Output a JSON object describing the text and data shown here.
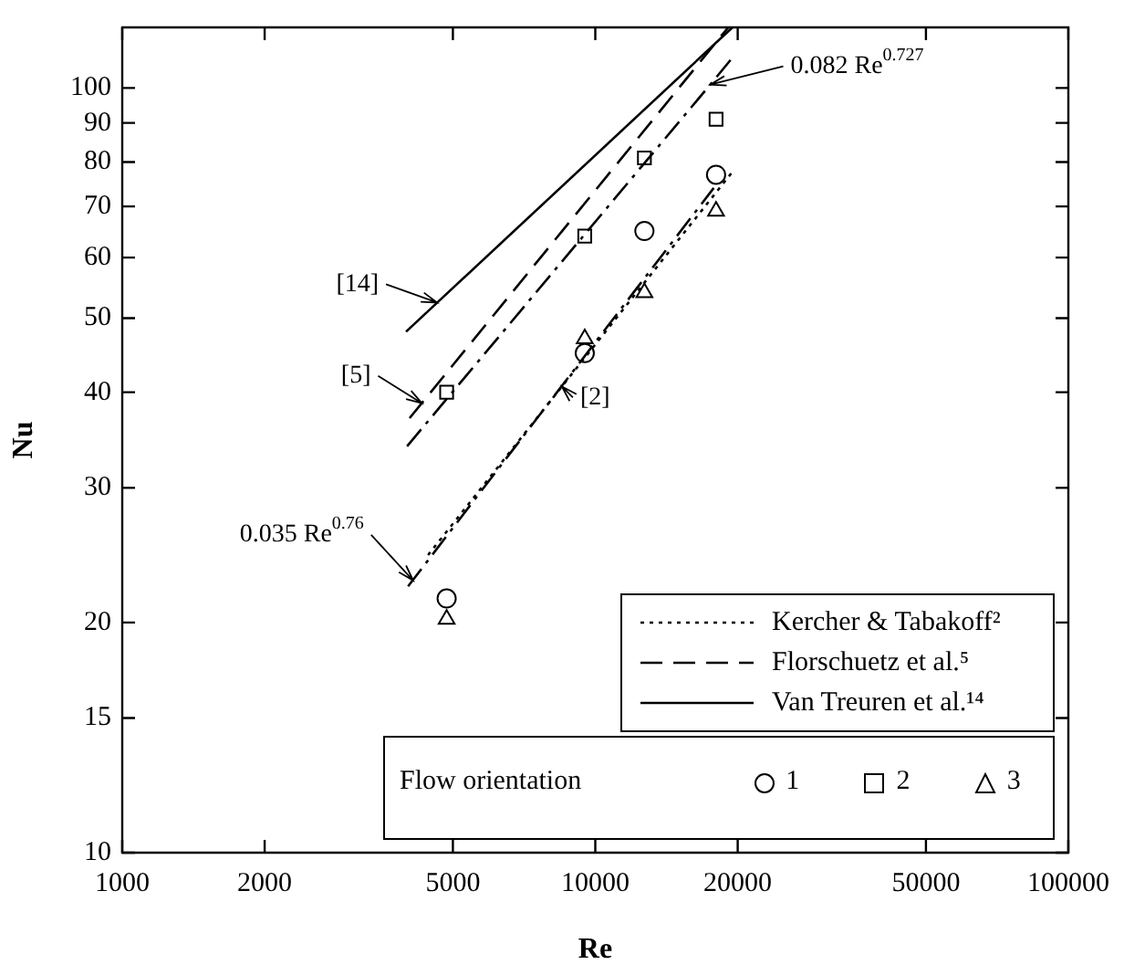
{
  "chart_data": {
    "type": "scatter",
    "xlabel": "Re",
    "ylabel": "Nu",
    "log": "xy",
    "xlim": [
      1000,
      100000
    ],
    "xticks": [
      1000,
      2000,
      5000,
      10000,
      20000,
      50000,
      100000
    ],
    "ylim": [
      10,
      120
    ],
    "yticks": [
      10,
      15,
      20,
      30,
      40,
      50,
      60,
      70,
      80,
      90,
      100
    ],
    "grid": false,
    "legend": "bottom right",
    "legend_title": "Flow orientation",
    "series": [
      {
        "name": "Kercher & Tabakoff²",
        "type": "line",
        "color": "#000000",
        "line_style": "dotted",
        "marker": "none",
        "x": [
          4430,
          19600
        ],
        "values": [
          24.5,
          78
        ]
      },
      {
        "name": "Florschuetz et al.⁵",
        "type": "line",
        "color": "#000000",
        "line_style": "dashed",
        "marker": "none",
        "x": [
          4050,
          19100
        ],
        "values": [
          37,
          120
        ]
      },
      {
        "name": "Van Treuren et al.¹⁴",
        "type": "line",
        "color": "#000000",
        "line_style": "solid",
        "marker": "none",
        "x": [
          3980,
          19500
        ],
        "values": [
          48,
          120
        ]
      },
      {
        "type": "line",
        "color": "#000000",
        "line_style": "dashdot",
        "marker": "none",
        "x": [
          4000,
          17500,
          19600
        ],
        "values": [
          34,
          101,
          110
        ]
      },
      {
        "type": "line",
        "color": "#000000",
        "line_style": "dashdot",
        "marker": "none",
        "x": [
          4020,
          17800
        ],
        "values": [
          22.3,
          74
        ]
      },
      {
        "name": "1",
        "type": "scatter",
        "color": "#000000",
        "marker": "circle",
        "x": [
          4850,
          9500,
          12700,
          18000
        ],
        "values": [
          21.5,
          45,
          65,
          77
        ]
      },
      {
        "name": "2",
        "type": "scatter",
        "color": "#000000",
        "marker": "square",
        "x": [
          4850,
          9500,
          12700,
          18000
        ],
        "values": [
          40,
          64,
          81,
          91
        ]
      },
      {
        "name": "3",
        "type": "scatter",
        "color": "#000000",
        "marker": "triangle",
        "x": [
          4850,
          9500,
          12700,
          18000
        ],
        "values": [
          20.2,
          47,
          54,
          69
        ]
      }
    ],
    "annotations": [
      {
        "text": "0.082 Re$^{0.727}$",
        "x": 17500,
        "y": 101
      },
      {
        "text": "[14]",
        "x": 4630,
        "y": 52.4
      },
      {
        "text": "[5]",
        "x": 4300,
        "y": 38.7
      },
      {
        "text": "[2]",
        "x": 8500,
        "y": 40.7
      },
      {
        "text": "0.035 Re$^{0.76}$",
        "x": 4120,
        "y": 22.7
      }
    ]
  }
}
